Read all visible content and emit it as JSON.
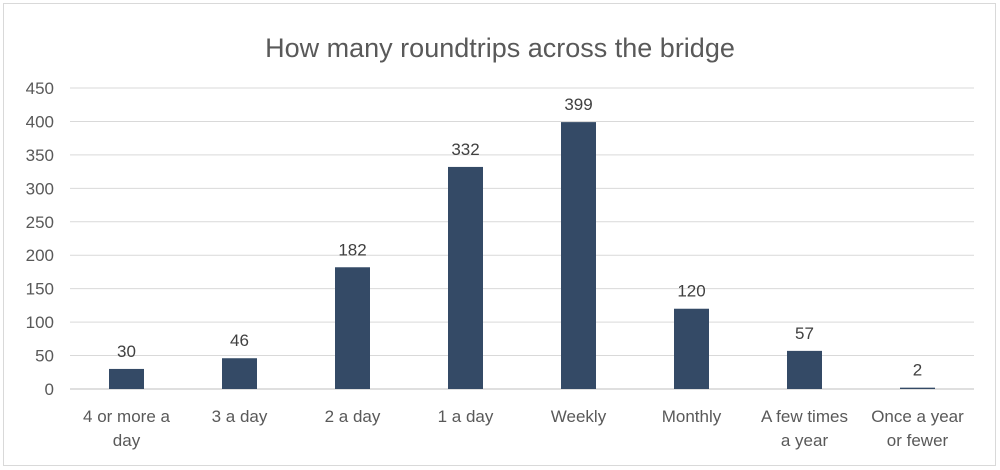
{
  "chart_data": {
    "type": "bar",
    "title": "How many roundtrips across the bridge",
    "xlabel": "",
    "ylabel": "",
    "categories": [
      [
        "4 or more a",
        "day"
      ],
      [
        "3 a day"
      ],
      [
        "2 a day"
      ],
      [
        "1 a day"
      ],
      [
        "Weekly"
      ],
      [
        "Monthly"
      ],
      [
        "A few times",
        "a year"
      ],
      [
        "Once a year",
        "or fewer"
      ]
    ],
    "values": [
      30,
      46,
      182,
      332,
      399,
      120,
      57,
      2
    ],
    "ylim": [
      0,
      450
    ],
    "yticks": [
      0,
      50,
      100,
      150,
      200,
      250,
      300,
      350,
      400,
      450
    ],
    "grid": true,
    "legend": "none",
    "data_labels": true,
    "bar_color": "#344a66"
  }
}
